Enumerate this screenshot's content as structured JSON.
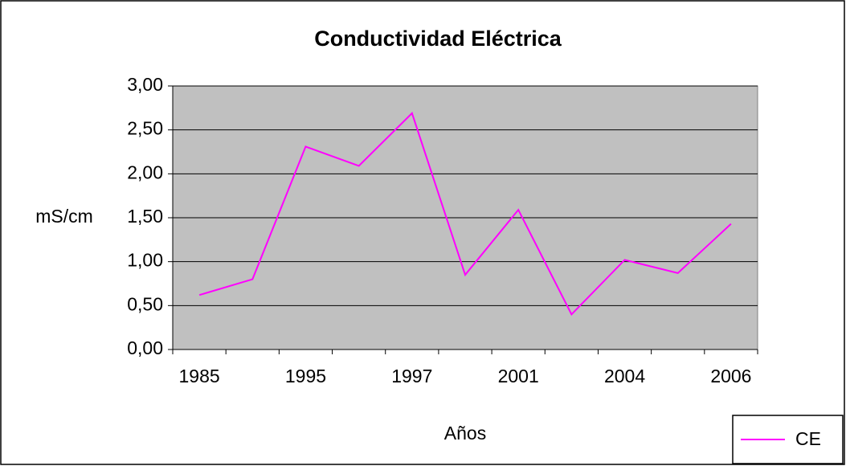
{
  "chart_data": {
    "type": "line",
    "title": "Conductividad Eléctrica",
    "x_label": "Años",
    "y_label": "mS/cm",
    "categories": [
      "1985",
      null,
      "1995",
      null,
      "1997",
      null,
      "2001",
      null,
      "2004",
      null,
      "2006"
    ],
    "series": [
      {
        "name": "CE",
        "color": "#ff00ff",
        "values": [
          0.62,
          0.8,
          2.31,
          2.09,
          2.69,
          0.85,
          1.59,
          0.4,
          1.02,
          0.87,
          1.43
        ]
      }
    ],
    "ylim": [
      0,
      3
    ],
    "yticks": [
      {
        "value": 0,
        "label": "0,00"
      },
      {
        "value": 0.5,
        "label": "0,50"
      },
      {
        "value": 1,
        "label": "1,00"
      },
      {
        "value": 1.5,
        "label": "1,50"
      },
      {
        "value": 2,
        "label": "2,00"
      },
      {
        "value": 2.5,
        "label": "2,50"
      },
      {
        "value": 3,
        "label": "3,00"
      }
    ],
    "grid": true,
    "legend": "bottom-right"
  }
}
